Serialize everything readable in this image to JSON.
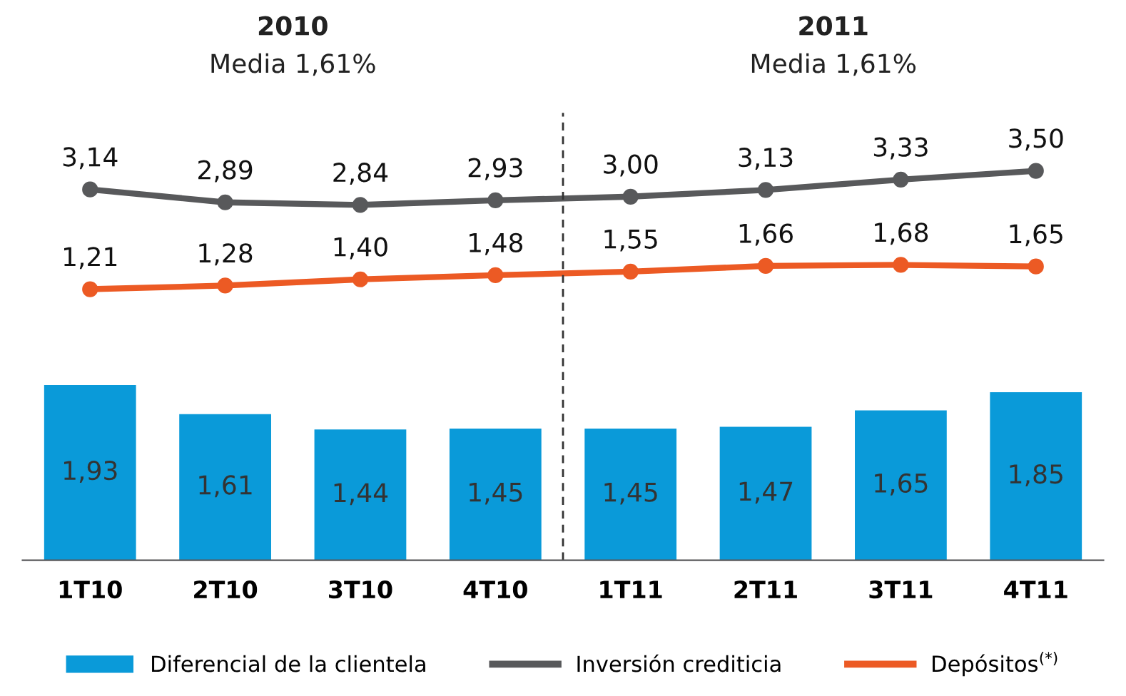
{
  "chart_data": [
    {
      "type": "line",
      "categories": [
        null,
        null,
        null,
        null,
        null,
        null,
        null,
        null
      ],
      "series": [
        {
          "name": "Inversión crediticia",
          "color": "#58595b",
          "values": [
            3.14,
            2.89,
            2.84,
            2.93,
            3.0,
            3.13,
            3.33,
            3.5
          ],
          "value_labels": [
            "3,14",
            "2,89",
            "2,84",
            "2,93",
            "3,00",
            "3,13",
            "3,33",
            "3,50"
          ]
        },
        {
          "name": "Depósitos$^{(*)}$",
          "color": "#ec5a24",
          "values": [
            1.21,
            1.28,
            1.4,
            1.48,
            1.55,
            1.66,
            1.68,
            1.65
          ],
          "value_labels": [
            "1,21",
            "1,28",
            "1,40",
            "1,48",
            "1,55",
            "1,66",
            "1,68",
            "1,65"
          ]
        }
      ],
      "marker": "circle",
      "tick_labels": false,
      "legend": "bottom",
      "annotations": [
        "2010",
        "Media 1,61%",
        "2011",
        "Media 1,61%"
      ]
    },
    {
      "type": "bar",
      "categories": [
        "1T10",
        "2T10",
        "3T10",
        "4T10",
        "1T11",
        "2T11",
        "3T11",
        "4T11"
      ],
      "series": [
        {
          "name": "Diferencial de la clientela",
          "color": "#0a9ad9",
          "values": [
            1.93,
            1.61,
            1.44,
            1.45,
            1.45,
            1.47,
            1.65,
            1.85
          ],
          "value_labels": [
            "1,93",
            "1,61",
            "1,44",
            "1,45",
            "1,45",
            "1,47",
            "1,65",
            "1,85"
          ]
        }
      ],
      "tick_labels": "x",
      "legend": "bottom"
    }
  ]
}
